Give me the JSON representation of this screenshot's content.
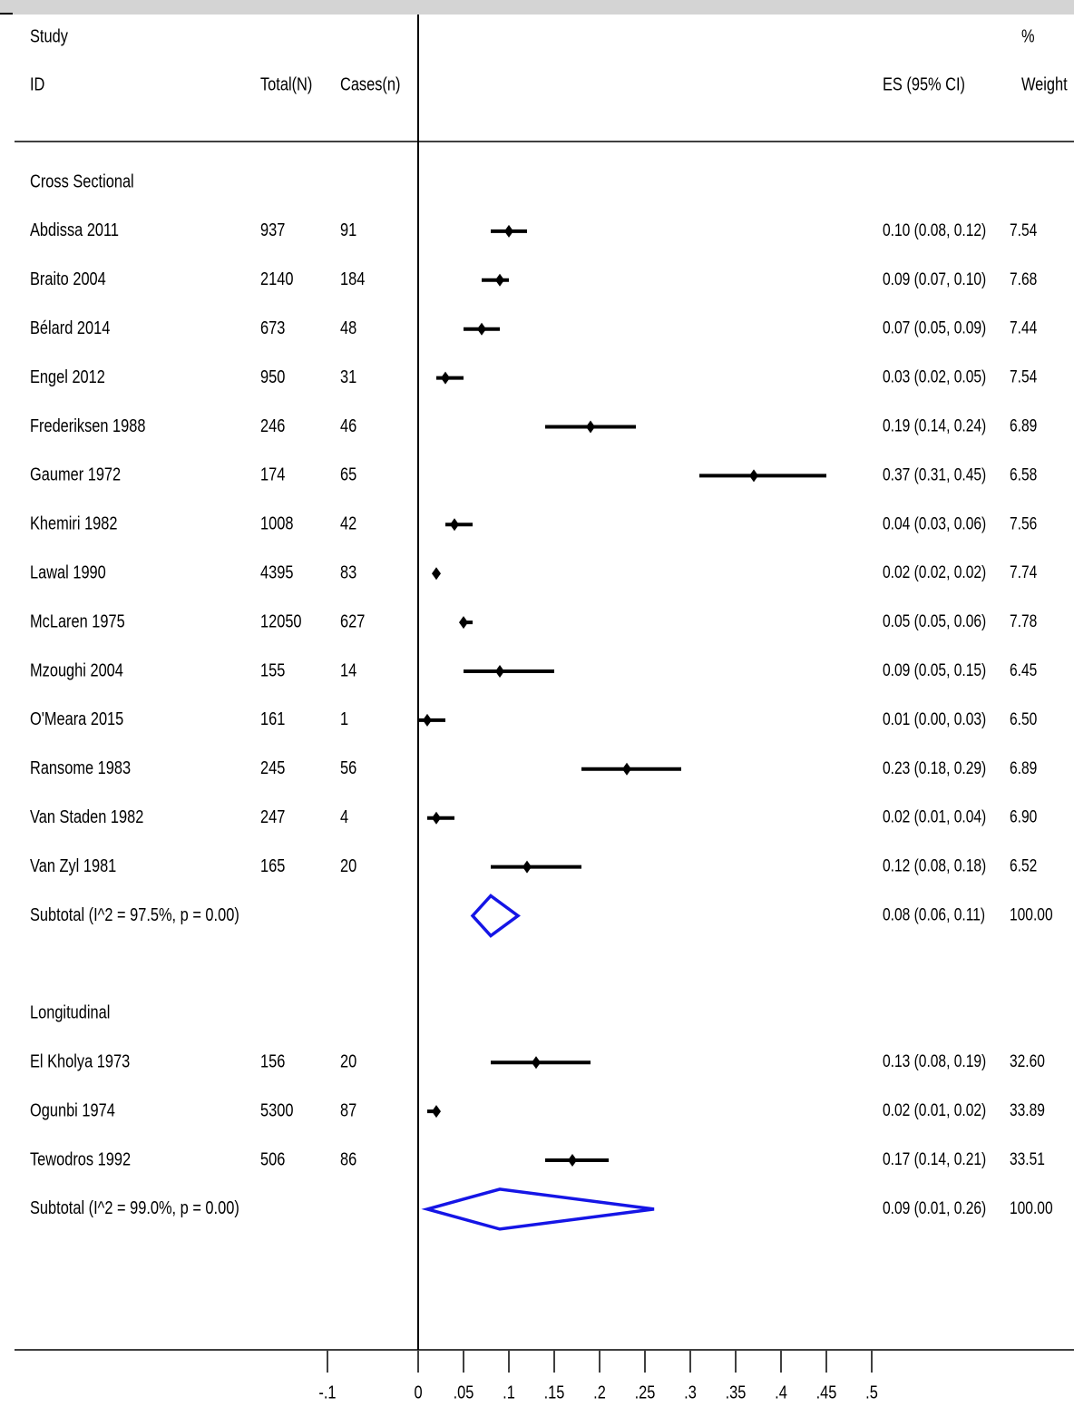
{
  "chart_data": {
    "type": "forest",
    "headers": {
      "study_line1": "Study",
      "study_line2": "ID",
      "total": "Total(N)",
      "cases": "Cases(n)",
      "es": "ES (95% CI)",
      "weight_line1": "%",
      "weight_line2": "Weight"
    },
    "groups": [
      {
        "name": "Cross Sectional",
        "studies": [
          {
            "id": "Abdissa 2011",
            "total": "937",
            "cases": "91",
            "es": 0.1,
            "lo": 0.08,
            "hi": 0.12,
            "es_text": "0.10 (0.08, 0.12)",
            "weight": "7.54"
          },
          {
            "id": "Braito 2004",
            "total": "2140",
            "cases": "184",
            "es": 0.09,
            "lo": 0.07,
            "hi": 0.1,
            "es_text": "0.09 (0.07, 0.10)",
            "weight": "7.68"
          },
          {
            "id": "Bélard 2014",
            "total": "673",
            "cases": "48",
            "es": 0.07,
            "lo": 0.05,
            "hi": 0.09,
            "es_text": "0.07 (0.05, 0.09)",
            "weight": "7.44"
          },
          {
            "id": "Engel 2012",
            "total": "950",
            "cases": "31",
            "es": 0.03,
            "lo": 0.02,
            "hi": 0.05,
            "es_text": "0.03 (0.02, 0.05)",
            "weight": "7.54"
          },
          {
            "id": "Frederiksen 1988",
            "total": "246",
            "cases": "46",
            "es": 0.19,
            "lo": 0.14,
            "hi": 0.24,
            "es_text": "0.19 (0.14, 0.24)",
            "weight": "6.89"
          },
          {
            "id": "Gaumer 1972",
            "total": "174",
            "cases": "65",
            "es": 0.37,
            "lo": 0.31,
            "hi": 0.45,
            "es_text": "0.37 (0.31, 0.45)",
            "weight": "6.58"
          },
          {
            "id": "Khemiri 1982",
            "total": "1008",
            "cases": "42",
            "es": 0.04,
            "lo": 0.03,
            "hi": 0.06,
            "es_text": "0.04 (0.03, 0.06)",
            "weight": "7.56"
          },
          {
            "id": "Lawal 1990",
            "total": "4395",
            "cases": "83",
            "es": 0.02,
            "lo": 0.02,
            "hi": 0.02,
            "es_text": "0.02 (0.02, 0.02)",
            "weight": "7.74"
          },
          {
            "id": "McLaren 1975",
            "total": "12050",
            "cases": "627",
            "es": 0.05,
            "lo": 0.05,
            "hi": 0.06,
            "es_text": "0.05 (0.05, 0.06)",
            "weight": "7.78"
          },
          {
            "id": "Mzoughi 2004",
            "total": "155",
            "cases": "14",
            "es": 0.09,
            "lo": 0.05,
            "hi": 0.15,
            "es_text": "0.09 (0.05, 0.15)",
            "weight": "6.45"
          },
          {
            "id": "O'Meara 2015",
            "total": "161",
            "cases": "1",
            "es": 0.01,
            "lo": 0.0,
            "hi": 0.03,
            "es_text": "0.01 (0.00, 0.03)",
            "weight": "6.50"
          },
          {
            "id": "Ransome 1983",
            "total": "245",
            "cases": "56",
            "es": 0.23,
            "lo": 0.18,
            "hi": 0.29,
            "es_text": "0.23 (0.18, 0.29)",
            "weight": "6.89"
          },
          {
            "id": "Van Staden 1982",
            "total": "247",
            "cases": "4",
            "es": 0.02,
            "lo": 0.01,
            "hi": 0.04,
            "es_text": "0.02 (0.01, 0.04)",
            "weight": "6.90"
          },
          {
            "id": "Van Zyl 1981",
            "total": "165",
            "cases": "20",
            "es": 0.12,
            "lo": 0.08,
            "hi": 0.18,
            "es_text": "0.12 (0.08, 0.18)",
            "weight": "6.52"
          }
        ],
        "subtotal": {
          "label": "Subtotal  (I^2 = 97.5%, p = 0.00)",
          "es": 0.08,
          "lo": 0.06,
          "hi": 0.11,
          "es_text": "0.08 (0.06, 0.11)",
          "weight": "100.00"
        }
      },
      {
        "name": "Longitudinal",
        "studies": [
          {
            "id": "El Kholya 1973",
            "total": "156",
            "cases": "20",
            "es": 0.13,
            "lo": 0.08,
            "hi": 0.19,
            "es_text": "0.13 (0.08, 0.19)",
            "weight": "32.60"
          },
          {
            "id": "Ogunbi 1974",
            "total": "5300",
            "cases": "87",
            "es": 0.02,
            "lo": 0.01,
            "hi": 0.02,
            "es_text": "0.02 (0.01, 0.02)",
            "weight": "33.89"
          },
          {
            "id": "Tewodros 1992",
            "total": "506",
            "cases": "86",
            "es": 0.17,
            "lo": 0.14,
            "hi": 0.21,
            "es_text": "0.17 (0.14, 0.21)",
            "weight": "33.51"
          }
        ],
        "subtotal": {
          "label": "Subtotal  (I^2 = 99.0%, p = 0.00)",
          "es": 0.09,
          "lo": 0.01,
          "hi": 0.26,
          "es_text": "0.09 (0.01, 0.26)",
          "weight": "100.00"
        }
      }
    ],
    "x_ticks": [
      -0.1,
      0,
      0.05,
      0.1,
      0.15,
      0.2,
      0.25,
      0.3,
      0.35,
      0.4,
      0.45,
      0.5
    ],
    "x_tick_labels": [
      "-.1",
      "0",
      ".05",
      ".1",
      ".15",
      ".2",
      ".25",
      ".3",
      ".35",
      ".4",
      ".45",
      ".5"
    ],
    "xlim": [
      -0.1,
      0.5
    ],
    "null_line": 0,
    "colors": {
      "study": "#000000",
      "pooled": "#1515e6",
      "header_bar": "#d4d4d4"
    }
  }
}
